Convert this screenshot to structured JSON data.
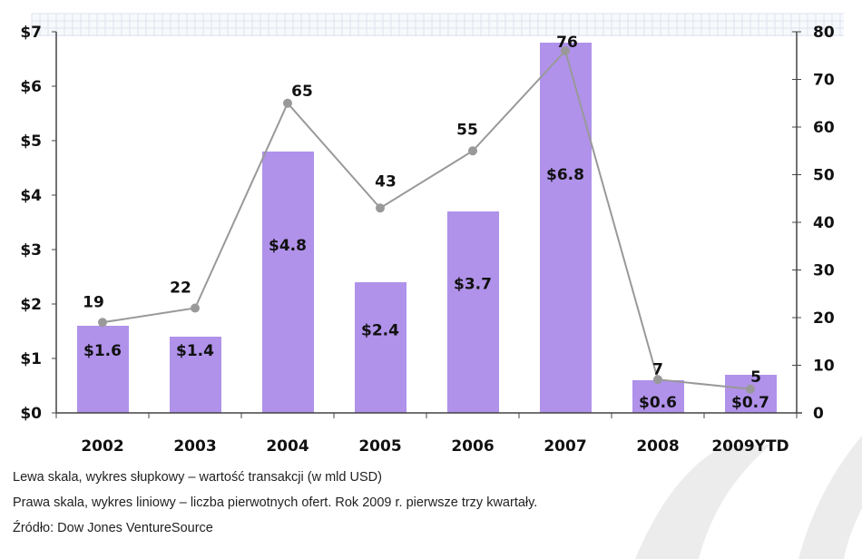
{
  "chart_data": {
    "type": "bar+line",
    "categories": [
      "2002",
      "2003",
      "2004",
      "2005",
      "2006",
      "2007",
      "2008",
      "2009YTD"
    ],
    "series": [
      {
        "kind": "bar",
        "axis": "left",
        "values": [
          1.6,
          1.4,
          4.8,
          2.4,
          3.7,
          6.8,
          0.6,
          0.7
        ],
        "labels": [
          "$1.6",
          "$1.4",
          "$4.8",
          "$2.4",
          "$3.7",
          "$6.8",
          "$0.6",
          "$0.7"
        ],
        "color": "#b092ea"
      },
      {
        "kind": "line",
        "axis": "right",
        "values": [
          19,
          22,
          65,
          43,
          55,
          76,
          7,
          5
        ],
        "color": "#999999"
      }
    ],
    "left_axis": {
      "range": [
        0,
        7
      ],
      "ticks": [
        "$0",
        "$1",
        "$2",
        "$3",
        "$4",
        "$5",
        "$6",
        "$7"
      ]
    },
    "right_axis": {
      "range": [
        0,
        80
      ],
      "ticks": [
        "0",
        "10",
        "20",
        "30",
        "40",
        "50",
        "60",
        "70",
        "80"
      ]
    },
    "grid": false
  },
  "captions": [
    "Lewa skala, wykres słupkowy – wartość transakcji (w mld USD)",
    "Prawa skala, wykres liniowy – liczba pierwotnych ofert. Rok 2009 r. pierwsze trzy kwartały.",
    "Źródło: Dow Jones VentureSource"
  ]
}
